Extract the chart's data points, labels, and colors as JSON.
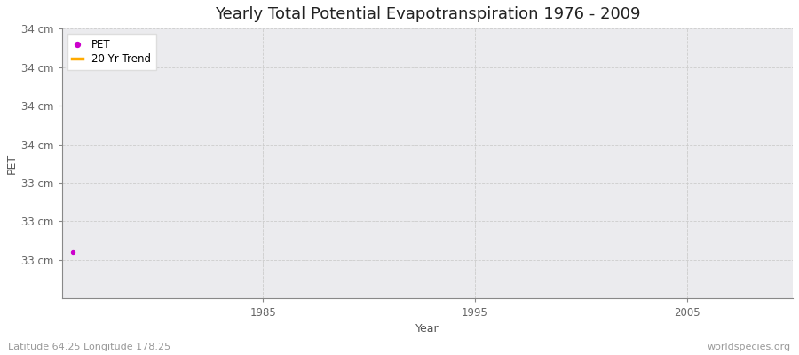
{
  "title": "Yearly Total Potential Evapotranspiration 1976 - 2009",
  "xlabel": "Year",
  "ylabel": "PET",
  "subtitle": "Latitude 64.25 Longitude 178.25",
  "watermark": "worldspecies.org",
  "years": [
    1976,
    1977,
    1978,
    1979,
    1980,
    1981,
    1982,
    1983,
    1984,
    1985,
    1986,
    1987,
    1988,
    1989,
    1990,
    1991,
    1992,
    1993,
    1994,
    1995,
    1996,
    1997,
    1998,
    1999,
    2000,
    2001,
    2002,
    2003,
    2004,
    2005,
    2006,
    2007,
    2008,
    2009
  ],
  "pet_values": [
    33.0,
    null,
    null,
    null,
    null,
    null,
    null,
    null,
    null,
    null,
    null,
    null,
    null,
    null,
    null,
    null,
    null,
    null,
    null,
    null,
    null,
    null,
    null,
    null,
    null,
    null,
    null,
    null,
    null,
    null,
    null,
    null,
    null,
    null
  ],
  "ylim_min": 32.7,
  "ylim_max": 34.45,
  "xlim_min": 1975.5,
  "xlim_max": 2010.0,
  "ytick_values": [
    32.95,
    33.2,
    33.45,
    33.7,
    33.95,
    34.2,
    34.45
  ],
  "ytick_labels": [
    "33 cm",
    "33 cm",
    "33 cm",
    "34 cm",
    "34 cm",
    "34 cm",
    "34 cm"
  ],
  "xtick_values": [
    1985,
    1995,
    2005
  ],
  "pet_color": "#cc00cc",
  "trend_color": "#ffaa00",
  "plot_bg_color": "#ebebee",
  "outer_bg_color": "#ffffff",
  "grid_color": "#cccccc",
  "legend_entries": [
    "PET",
    "20 Yr Trend"
  ],
  "title_fontsize": 13,
  "axis_label_fontsize": 9,
  "tick_fontsize": 8.5,
  "subtitle_fontsize": 8,
  "watermark_fontsize": 8
}
